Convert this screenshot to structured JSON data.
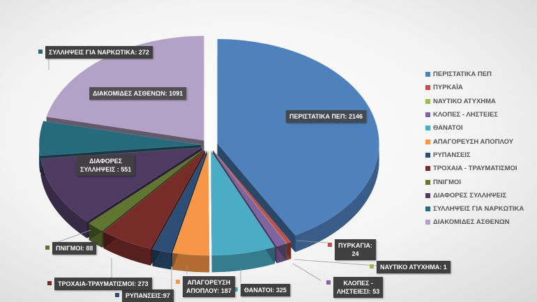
{
  "chart_data": {
    "type": "pie",
    "style": "3d-exploded",
    "start": "top, clockwise",
    "legend_position": "right",
    "series": [
      {
        "name": "ΠΕΡΙΣΤΑΤΙΚΑ ΠΕΠ",
        "value": 2146,
        "label": "ΠΕΡΙΣΤΑΤΙΚΑ ΠΕΠ: 2146",
        "color": "#4f81bd"
      },
      {
        "name": "ΠΥΡΚΑΪΑ",
        "value": 24,
        "label": "ΠΥΡΚΑΓΙΑ: 24",
        "color": "#c0504d"
      },
      {
        "name": "ΝΑΥΤΙΚΟ ΑΤΥΧΗΜΑ",
        "value": 1,
        "label": "ΝΑΥΤΙΚΟ ΑΤΥΧΗΜΑ: 1",
        "color": "#9bbb59"
      },
      {
        "name": "ΚΛΟΠΕΣ - ΛΗΣΤΕΙΕΣ",
        "value": 53,
        "label": "ΚΛΟΠΕΣ - ΛΗΣΤΕΙΕΣΙ: 53",
        "color": "#8064a2"
      },
      {
        "name": "ΘΑΝΑΤΟΙ",
        "value": 325,
        "label": "ΘΑΝΑΤΟΙ: 325",
        "color": "#4bacc6"
      },
      {
        "name": "ΑΠΑΓΟΡΕΥΣΗ ΑΠΟΠΛΟΥ",
        "value": 187,
        "label": "ΑΠΑΓΟΡΕΥΣΗ ΑΠΟΠΛΟΥ: 187",
        "color": "#f79646"
      },
      {
        "name": "ΡΥΠΑΝΣΕΙΣ",
        "value": 97,
        "label": "ΡΥΠΑΝΣΕΙΣ:97",
        "color": "#2c4d75"
      },
      {
        "name": "ΤΡΟΧΑΙΑ - ΤΡΑΥΜΑΤΙΣΜΟΙ",
        "value": 273,
        "label": "ΤΡΟΧΑΙΑ-ΤΡΑΥΜΑΤΙΣΜΟΙ: 273",
        "color": "#772c2a"
      },
      {
        "name": "ΠΝΙΓΜΟΙ",
        "value": 88,
        "label": "ΠΝΙΓΜΟΙ: 88",
        "color": "#5f7530"
      },
      {
        "name": "ΔΙΑΦΟΡΕΣ ΣΥΛΛΗΨΕΙΣ",
        "value": 551,
        "label": "ΔΙΑΦΟΡΕΣ ΣΥΛΛΗΨΕΙΣ : 551",
        "color": "#4d3b62"
      },
      {
        "name": "ΣΥΛΛΗΨΕΙΣ ΓΙΑ ΝΑΡΚΩΤΙΚΑ",
        "value": 272,
        "label": "ΣΥΛΛΗΨΕΙΣ ΓΙΑ ΝΑΡΚΩΤΙΚΑ: 272",
        "color": "#276a7c"
      },
      {
        "name": "ΔΙΑΚΟΜΙΔΕΣ ΑΣΘΕΝΩΝ",
        "value": 1091,
        "label": "ΔΙΑΚΟΜΙΔΕΣ ΑΣΘΕΝΩΝ: 1091",
        "color": "#b3a2c7"
      }
    ]
  }
}
